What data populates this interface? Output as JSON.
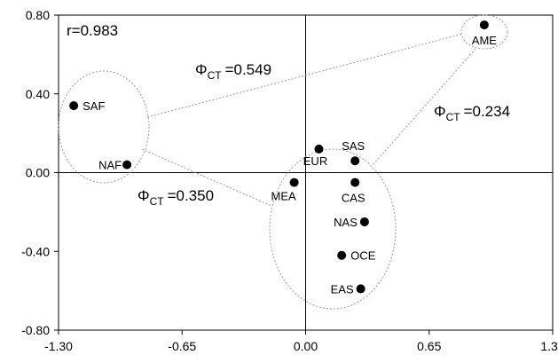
{
  "chart_data": {
    "type": "scatter",
    "xlim": [
      -1.3,
      1.3
    ],
    "ylim": [
      -0.8,
      0.8
    ],
    "xticks": [
      -1.3,
      -0.65,
      0.0,
      0.65,
      1.3
    ],
    "yticks": [
      0.8,
      0.4,
      0.0,
      -0.4,
      -0.8
    ],
    "xtick_labels": [
      "-1.30",
      "-0.65",
      "0.00",
      "0.65",
      "1.30"
    ],
    "ytick_labels": [
      "0.80",
      "0.40",
      "0.00",
      "-0.40",
      "-0.80"
    ],
    "points": [
      {
        "label": "SAF",
        "x": -1.22,
        "y": 0.34
      },
      {
        "label": "NAF",
        "x": -0.94,
        "y": 0.04
      },
      {
        "label": "EUR",
        "x": 0.07,
        "y": 0.12
      },
      {
        "label": "SAS",
        "x": 0.26,
        "y": 0.06
      },
      {
        "label": "MEA",
        "x": -0.06,
        "y": -0.05
      },
      {
        "label": "CAS",
        "x": 0.26,
        "y": -0.05
      },
      {
        "label": "NAS",
        "x": 0.31,
        "y": -0.25
      },
      {
        "label": "OCE",
        "x": 0.19,
        "y": -0.42
      },
      {
        "label": "EAS",
        "x": 0.29,
        "y": -0.59
      },
      {
        "label": "AME",
        "x": 0.94,
        "y": 0.75
      }
    ],
    "annotations": {
      "r": "r=0.983",
      "phi_symbol": "Φ",
      "phi_sub": "CT",
      "phi1": "=0.549",
      "phi2": "=0.234",
      "phi3": "=0.350"
    },
    "grid": false,
    "legend": "none"
  }
}
